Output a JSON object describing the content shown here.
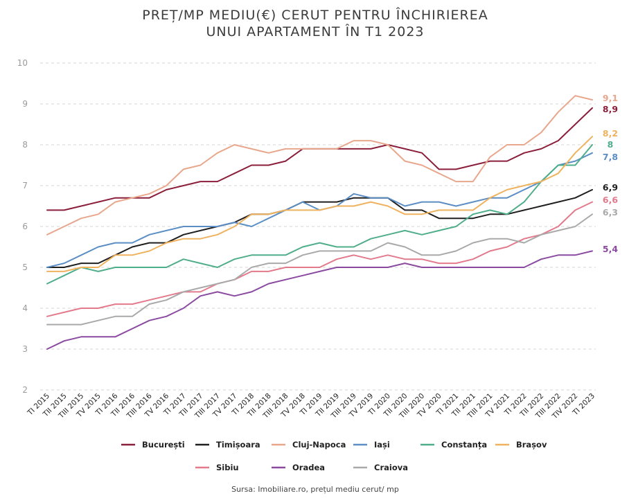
{
  "chart_data": {
    "type": "line",
    "title": [
      "PREȚ/MP MEDIU(€) CERUT PENTRU ÎNCHIRIEREA",
      "UNUI APARTAMENT ÎN T1 2023"
    ],
    "ylim": [
      2,
      10
    ],
    "yticks": [
      "2",
      "3",
      "4",
      "5",
      "6",
      "7",
      "8",
      "9",
      "10"
    ],
    "grid": "horizontal-dashed",
    "legend_position": "bottom",
    "categories": [
      "TI 2015",
      "TII 2015",
      "TIII 2015",
      "TV 2015",
      "TI 2016",
      "TII 2016",
      "TIII 2016",
      "TV 2016",
      "TI 2017",
      "TII 2017",
      "TIII 2017",
      "TV 2017",
      "TI 2018",
      "TII 2018",
      "TIII 2018",
      "TV 2018",
      "TI 2019",
      "TII 2019",
      "TIII 2019",
      "TV 2019",
      "TI 2020",
      "TII 2020",
      "TIII 2020",
      "TV 2020",
      "TI 2021",
      "TII 2021",
      "TIII 2021",
      "TV 2021",
      "TI 2022",
      "TII 2022",
      "TIII 2022",
      "TIV 2022",
      "TI 2023"
    ],
    "series": [
      {
        "name": "București",
        "color": "#8b1e3b",
        "end_label": "8,9",
        "values": [
          6.4,
          6.4,
          6.5,
          6.6,
          6.7,
          6.7,
          6.7,
          6.9,
          7.0,
          7.1,
          7.1,
          7.3,
          7.5,
          7.5,
          7.6,
          7.9,
          7.9,
          7.9,
          7.9,
          7.9,
          8.0,
          7.9,
          7.8,
          7.4,
          7.4,
          7.5,
          7.6,
          7.6,
          7.8,
          7.9,
          8.1,
          8.5,
          8.9
        ]
      },
      {
        "name": "Timișoara",
        "color": "#1f1f1f",
        "end_label": "6,9",
        "values": [
          5.0,
          5.0,
          5.1,
          5.1,
          5.3,
          5.5,
          5.6,
          5.6,
          5.8,
          5.9,
          6.0,
          6.1,
          6.3,
          6.3,
          6.4,
          6.6,
          6.6,
          6.6,
          6.7,
          6.7,
          6.7,
          6.4,
          6.4,
          6.2,
          6.2,
          6.2,
          6.3,
          6.3,
          6.4,
          6.5,
          6.6,
          6.7,
          6.9
        ]
      },
      {
        "name": "Cluj-Napoca",
        "color": "#e8a78c",
        "end_label": "9,1",
        "values": [
          5.8,
          6.0,
          6.2,
          6.3,
          6.6,
          6.7,
          6.8,
          7.0,
          7.4,
          7.5,
          7.8,
          8.0,
          7.9,
          7.8,
          7.9,
          7.9,
          7.9,
          7.9,
          8.1,
          8.1,
          8.0,
          7.6,
          7.5,
          7.3,
          7.1,
          7.1,
          7.7,
          8.0,
          8.0,
          8.3,
          8.8,
          9.2,
          9.1
        ]
      },
      {
        "name": "Iași",
        "color": "#5b8ec4",
        "end_label": "7,8",
        "values": [
          5.0,
          5.1,
          5.3,
          5.5,
          5.6,
          5.6,
          5.8,
          5.9,
          6.0,
          6.0,
          6.0,
          6.1,
          6.0,
          6.2,
          6.4,
          6.6,
          6.4,
          6.5,
          6.8,
          6.7,
          6.7,
          6.5,
          6.6,
          6.6,
          6.5,
          6.6,
          6.7,
          6.7,
          6.9,
          7.1,
          7.5,
          7.6,
          7.8
        ]
      },
      {
        "name": "Constanța",
        "color": "#4fae8a",
        "end_label": "8",
        "values": [
          4.6,
          4.8,
          5.0,
          4.9,
          5.0,
          5.0,
          5.0,
          5.0,
          5.2,
          5.1,
          5.0,
          5.2,
          5.3,
          5.3,
          5.3,
          5.5,
          5.6,
          5.5,
          5.5,
          5.7,
          5.8,
          5.9,
          5.8,
          5.9,
          6.0,
          6.3,
          6.4,
          6.3,
          6.6,
          7.1,
          7.5,
          7.5,
          8.0
        ]
      },
      {
        "name": "Brașov",
        "color": "#efb25e",
        "end_label": "8,2",
        "values": [
          4.9,
          4.9,
          5.0,
          5.0,
          5.3,
          5.3,
          5.4,
          5.6,
          5.7,
          5.7,
          5.8,
          6.0,
          6.3,
          6.3,
          6.4,
          6.4,
          6.4,
          6.5,
          6.5,
          6.6,
          6.5,
          6.3,
          6.3,
          6.4,
          6.4,
          6.4,
          6.7,
          6.9,
          7.0,
          7.1,
          7.3,
          7.8,
          8.2
        ]
      },
      {
        "name": "Sibiu",
        "color": "#e27a8c",
        "end_label": "6,6",
        "values": [
          3.8,
          3.9,
          4.0,
          4.0,
          4.1,
          4.1,
          4.2,
          4.3,
          4.4,
          4.4,
          4.6,
          4.7,
          4.9,
          4.9,
          5.0,
          5.0,
          5.0,
          5.2,
          5.3,
          5.2,
          5.3,
          5.2,
          5.2,
          5.1,
          5.1,
          5.2,
          5.4,
          5.5,
          5.7,
          5.8,
          6.0,
          6.4,
          6.6
        ]
      },
      {
        "name": "Oradea",
        "color": "#8a4aa0",
        "end_label": "5,4",
        "values": [
          3.0,
          3.2,
          3.3,
          3.3,
          3.3,
          3.5,
          3.7,
          3.8,
          4.0,
          4.3,
          4.4,
          4.3,
          4.4,
          4.6,
          4.7,
          4.8,
          4.9,
          5.0,
          5.0,
          5.0,
          5.0,
          5.1,
          5.0,
          5.0,
          5.0,
          5.0,
          5.0,
          5.0,
          5.0,
          5.2,
          5.3,
          5.3,
          5.4
        ]
      },
      {
        "name": "Craiova",
        "color": "#a9a9a9",
        "end_label": "6,3",
        "values": [
          3.6,
          3.6,
          3.6,
          3.7,
          3.8,
          3.8,
          4.1,
          4.2,
          4.4,
          4.5,
          4.6,
          4.7,
          5.0,
          5.1,
          5.1,
          5.3,
          5.4,
          5.4,
          5.4,
          5.4,
          5.6,
          5.5,
          5.3,
          5.3,
          5.4,
          5.6,
          5.7,
          5.7,
          5.6,
          5.8,
          5.9,
          6.0,
          6.3
        ]
      }
    ],
    "source": "Sursa: Imobiliare.ro, prețul mediu cerut/ mp"
  }
}
